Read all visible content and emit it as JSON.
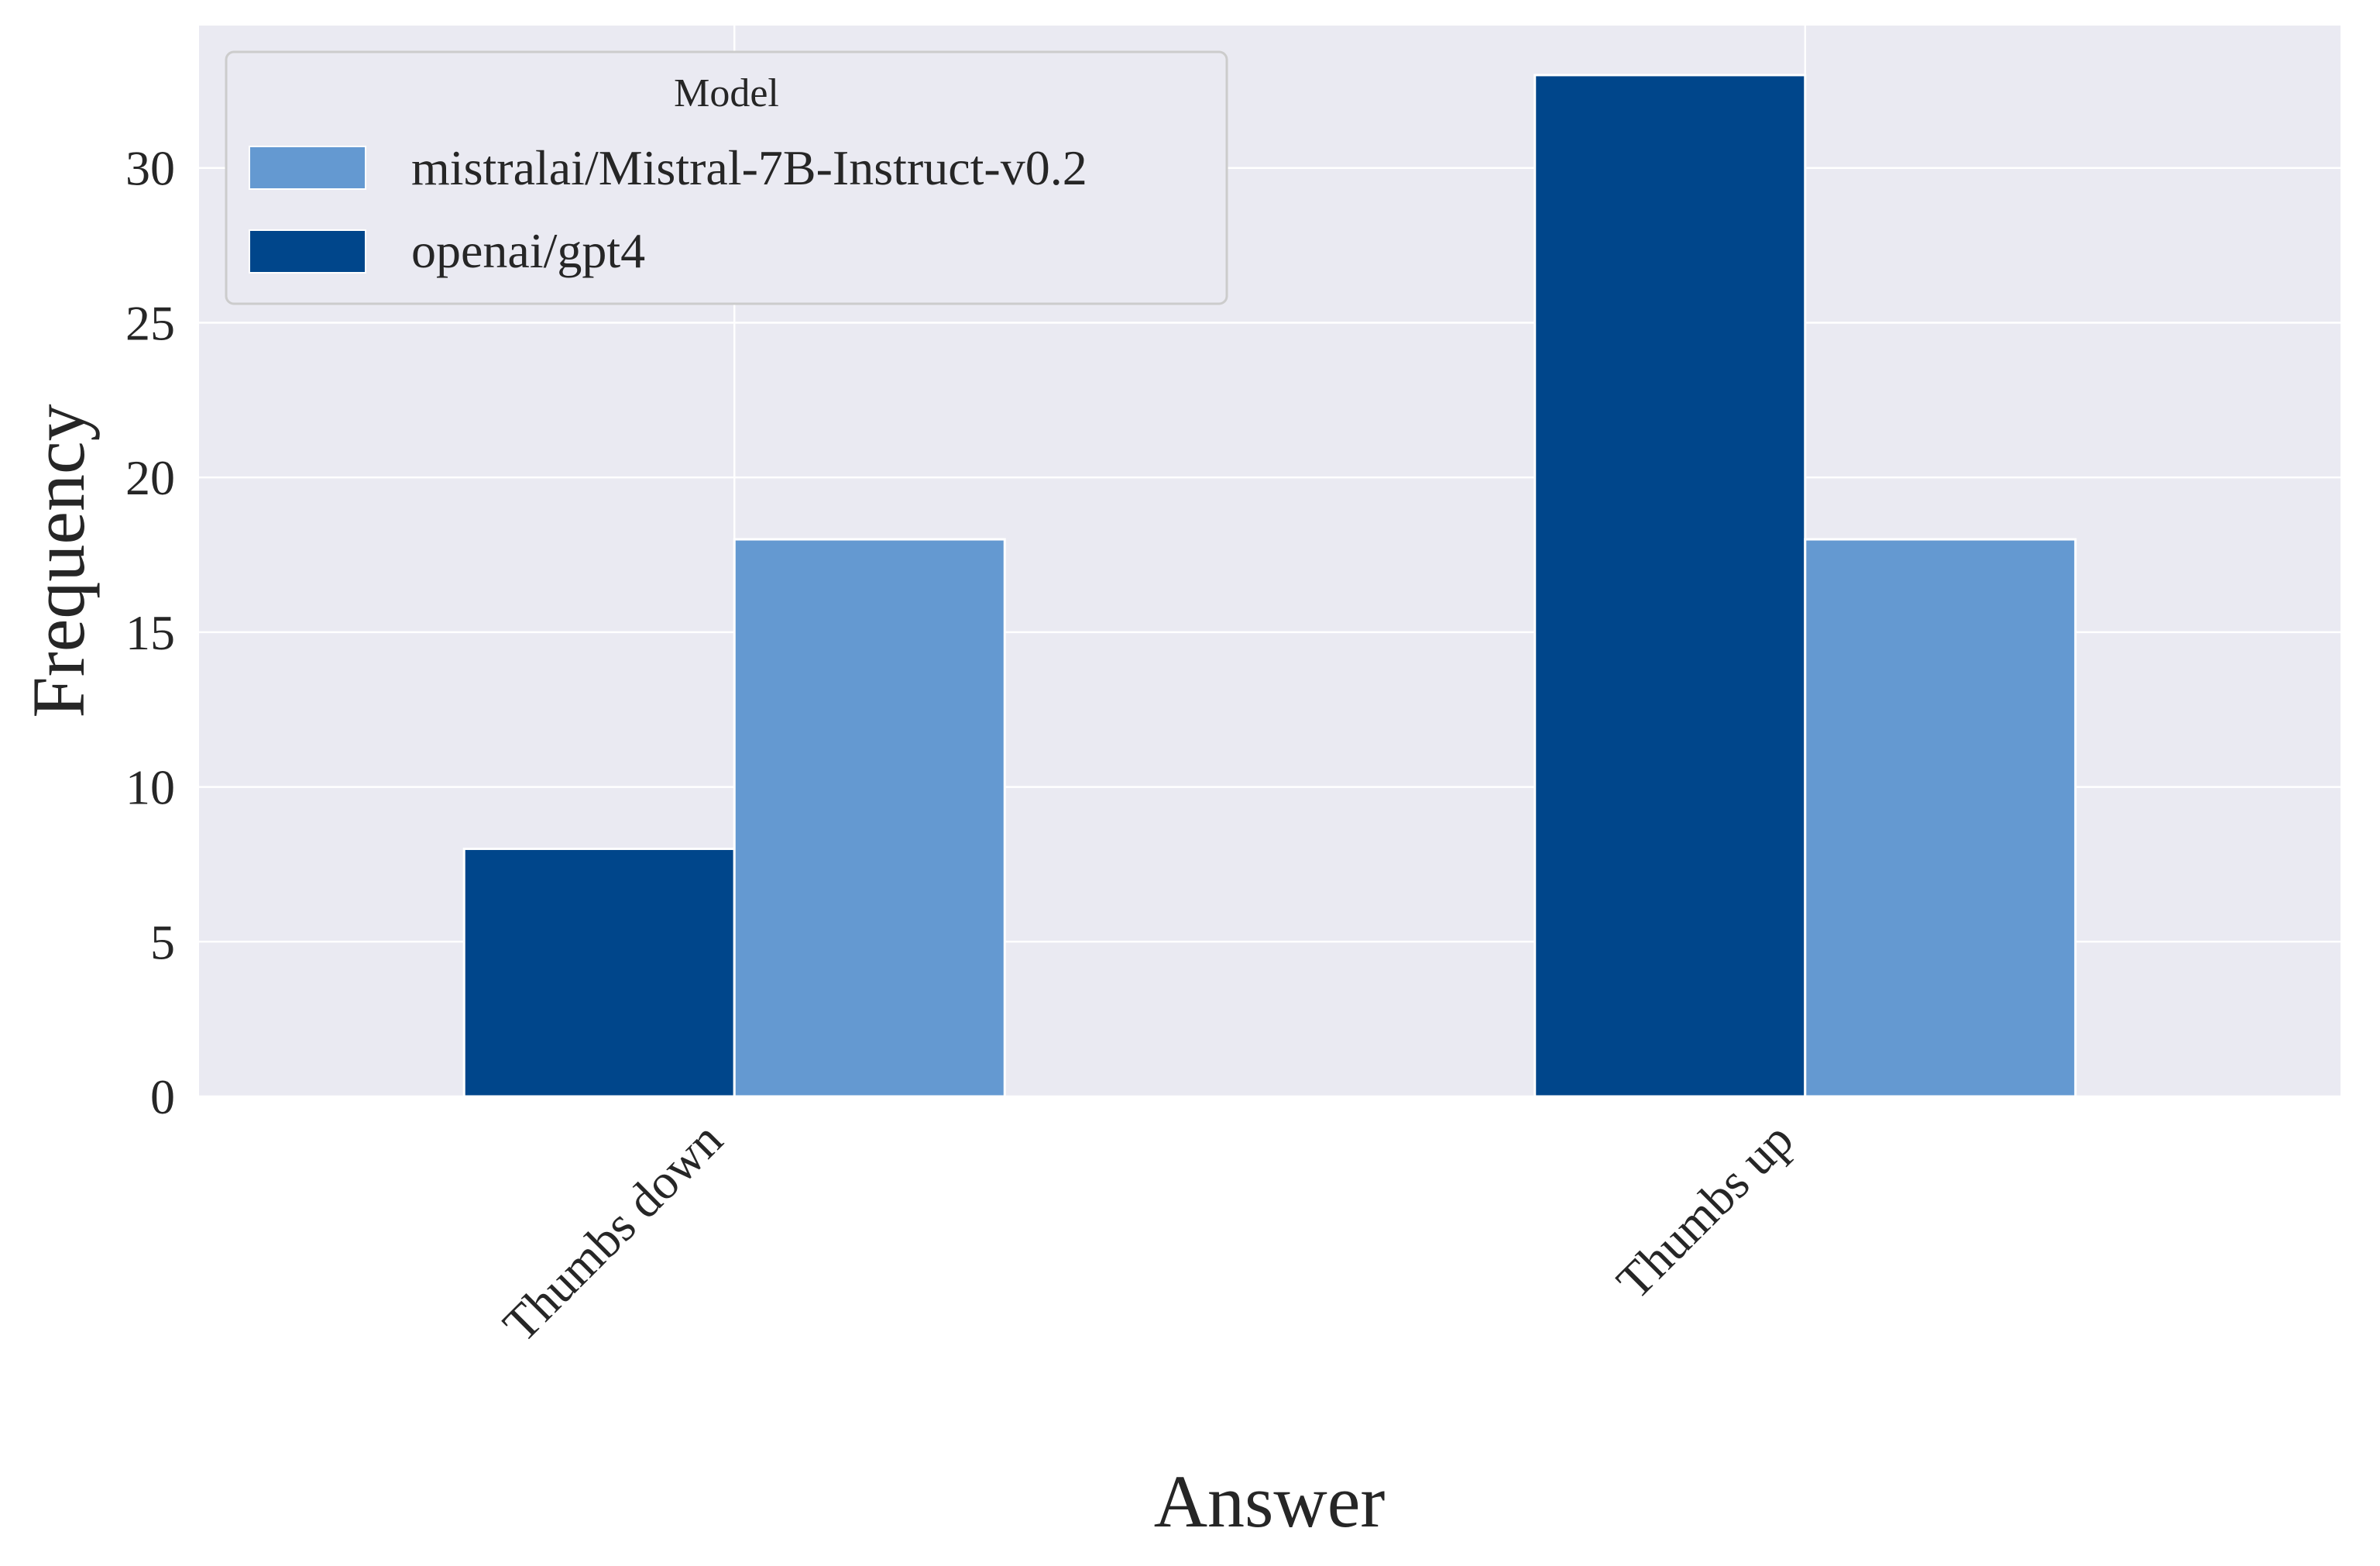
{
  "chart_data": {
    "type": "bar",
    "categories": [
      "Thumbs down",
      "Thumbs up"
    ],
    "series": [
      {
        "name": "openai/gpt4",
        "values": [
          8,
          33
        ],
        "color": "#00468B"
      },
      {
        "name": "mistralai/Mistral-7B-Instruct-v0.2",
        "values": [
          18,
          18
        ],
        "color": "#6499D1"
      }
    ],
    "xlabel": "Answer",
    "ylabel": "Frequency",
    "ylim": [
      0,
      34.6
    ],
    "yticks": [
      0,
      5,
      10,
      15,
      20,
      25,
      30
    ],
    "grid": true,
    "legend": {
      "title": "Model",
      "placement": "top-left",
      "entries": [
        {
          "label": "mistralai/Mistral-7B-Instruct-v0.2",
          "color": "#6499D1"
        },
        {
          "label": "openai/gpt4",
          "color": "#00468B"
        }
      ]
    },
    "background_color": "#EAEAF2",
    "grid_color": "#FFFFFF"
  }
}
